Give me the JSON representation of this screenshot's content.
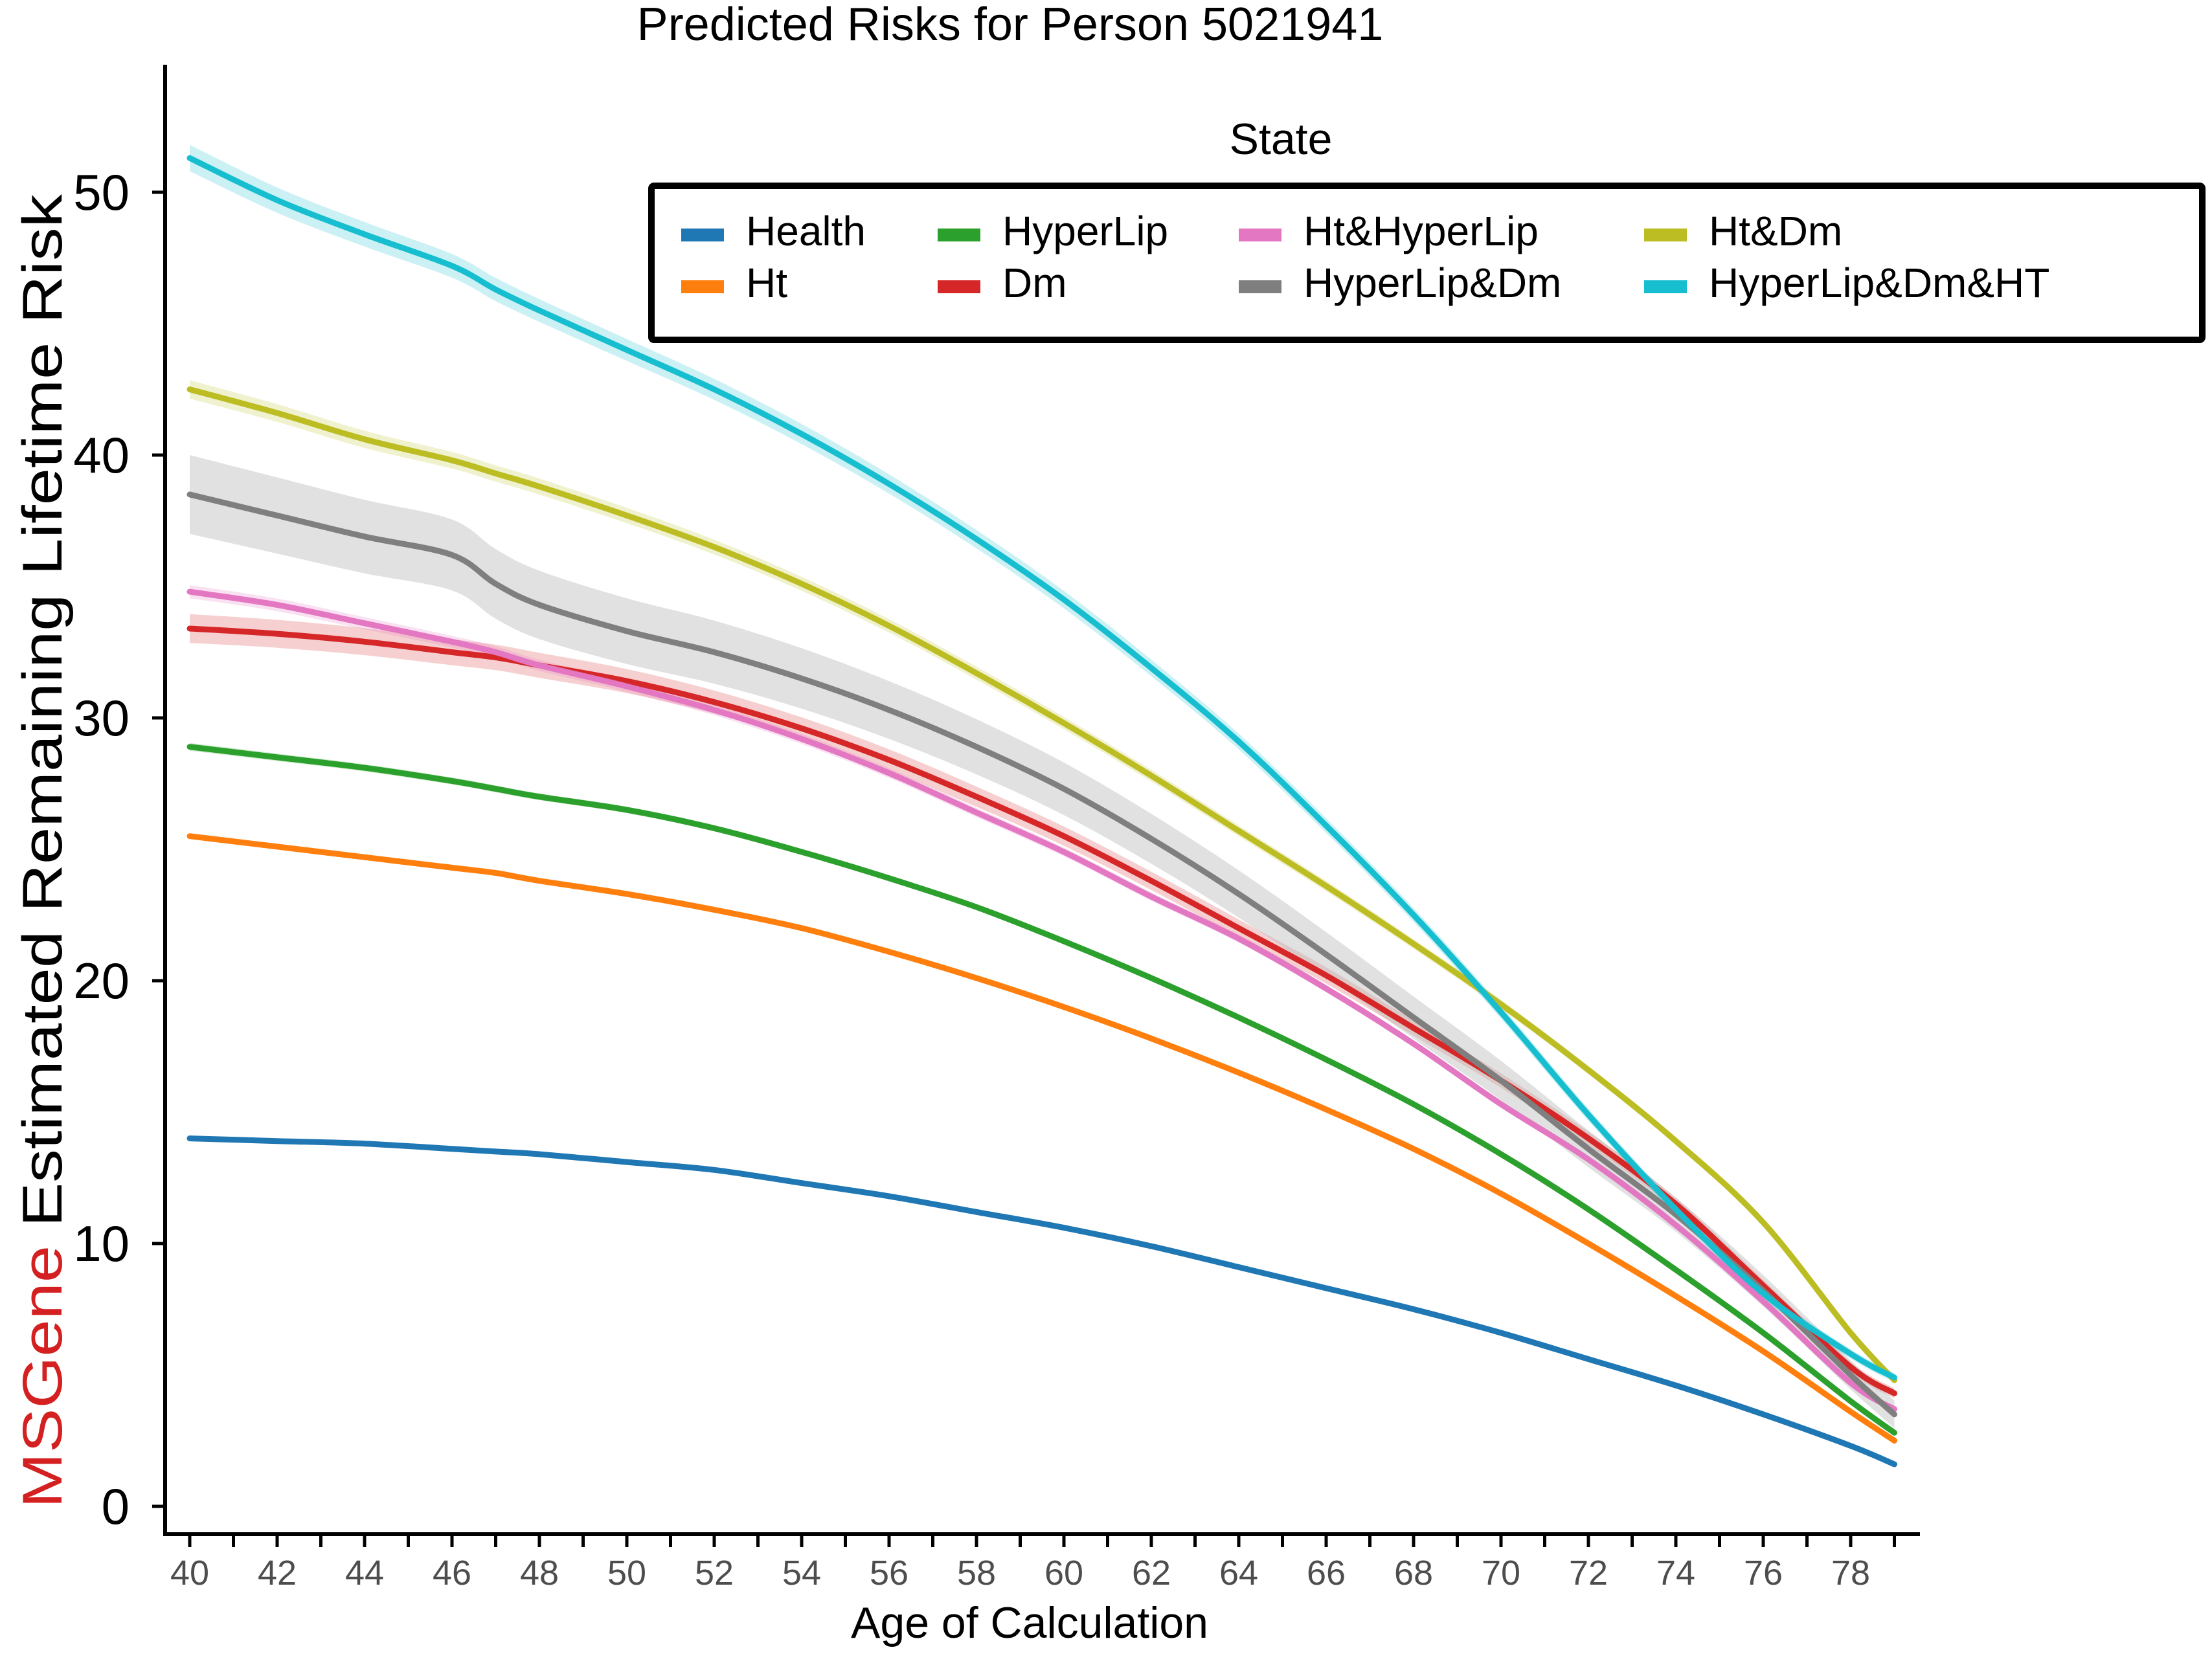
{
  "chart_data": {
    "type": "line",
    "title": "Predicted Risks for Person 5021941",
    "xlabel": "Age of Calculation",
    "ylabel_prefix": "MSGene",
    "ylabel_rest": " Estimated Remaining Lifetime Risk",
    "xlim": [
      40,
      79
    ],
    "ylim": [
      0,
      54
    ],
    "x_ticks": [
      40,
      42,
      44,
      46,
      48,
      50,
      52,
      54,
      56,
      58,
      60,
      62,
      64,
      66,
      68,
      70,
      72,
      74,
      76,
      78
    ],
    "y_ticks": [
      0,
      10,
      20,
      30,
      40,
      50
    ],
    "legend": {
      "title": "State",
      "placement": "top-right"
    },
    "x": [
      40,
      42,
      44,
      46,
      47,
      48,
      50,
      52,
      54,
      56,
      58,
      60,
      62,
      64,
      66,
      68,
      70,
      72,
      74,
      76,
      78,
      79
    ],
    "series": [
      {
        "name": "Health",
        "color": "#1f77b4",
        "values": [
          14.0,
          13.9,
          13.8,
          13.6,
          13.5,
          13.4,
          13.1,
          12.8,
          12.3,
          11.8,
          11.2,
          10.6,
          9.9,
          9.1,
          8.3,
          7.5,
          6.6,
          5.6,
          4.6,
          3.5,
          2.3,
          1.6
        ],
        "band": 0.0
      },
      {
        "name": "Ht",
        "color": "#ff7f0e",
        "values": [
          25.5,
          25.1,
          24.7,
          24.3,
          24.1,
          23.8,
          23.3,
          22.7,
          22.0,
          21.1,
          20.1,
          19.0,
          17.8,
          16.5,
          15.1,
          13.6,
          11.9,
          10.0,
          8.0,
          5.9,
          3.6,
          2.5
        ],
        "band": 0.0
      },
      {
        "name": "HyperLip",
        "color": "#2ca02c",
        "values": [
          28.9,
          28.5,
          28.1,
          27.6,
          27.3,
          27.0,
          26.5,
          25.8,
          24.9,
          23.9,
          22.8,
          21.5,
          20.1,
          18.6,
          17.0,
          15.3,
          13.4,
          11.3,
          9.0,
          6.6,
          4.0,
          2.8
        ],
        "band": 0.15
      },
      {
        "name": "Dm",
        "color": "#d62728",
        "values": [
          33.4,
          33.2,
          32.9,
          32.5,
          32.3,
          32.0,
          31.4,
          30.6,
          29.6,
          28.4,
          27.0,
          25.5,
          23.8,
          22.0,
          20.2,
          18.2,
          16.2,
          14.0,
          11.5,
          8.4,
          5.3,
          4.3
        ],
        "band": 0.55
      },
      {
        "name": "Ht&HyperLip",
        "color": "#e377c2",
        "values": [
          34.8,
          34.3,
          33.6,
          32.9,
          32.5,
          32.0,
          31.2,
          30.3,
          29.2,
          27.9,
          26.4,
          24.9,
          23.2,
          21.6,
          19.7,
          17.6,
          15.3,
          13.2,
          10.7,
          7.8,
          4.7,
          3.7
        ],
        "band": 0.25
      },
      {
        "name": "HyperLip&Dm",
        "color": "#7f7f7f",
        "values": [
          38.5,
          37.7,
          36.9,
          36.2,
          35.1,
          34.3,
          33.3,
          32.5,
          31.5,
          30.3,
          28.9,
          27.3,
          25.4,
          23.3,
          21.0,
          18.6,
          16.2,
          13.6,
          11.1,
          8.2,
          5.0,
          3.5
        ],
        "band": 1.5
      },
      {
        "name": "Ht&Dm",
        "color": "#bcbd22",
        "values": [
          42.5,
          41.6,
          40.6,
          39.8,
          39.3,
          38.8,
          37.7,
          36.5,
          35.1,
          33.5,
          31.7,
          29.8,
          27.8,
          25.7,
          23.6,
          21.4,
          19.1,
          16.6,
          13.9,
          10.8,
          6.6,
          4.8
        ],
        "band": 0.35
      },
      {
        "name": "HyperLip&Dm&HT",
        "color": "#17becf",
        "values": [
          51.3,
          49.7,
          48.4,
          47.2,
          46.3,
          45.5,
          44.0,
          42.5,
          40.8,
          38.9,
          36.8,
          34.5,
          31.9,
          29.1,
          25.9,
          22.5,
          18.8,
          14.9,
          11.3,
          8.1,
          5.8,
          4.9
        ],
        "band": 0.5
      }
    ]
  }
}
